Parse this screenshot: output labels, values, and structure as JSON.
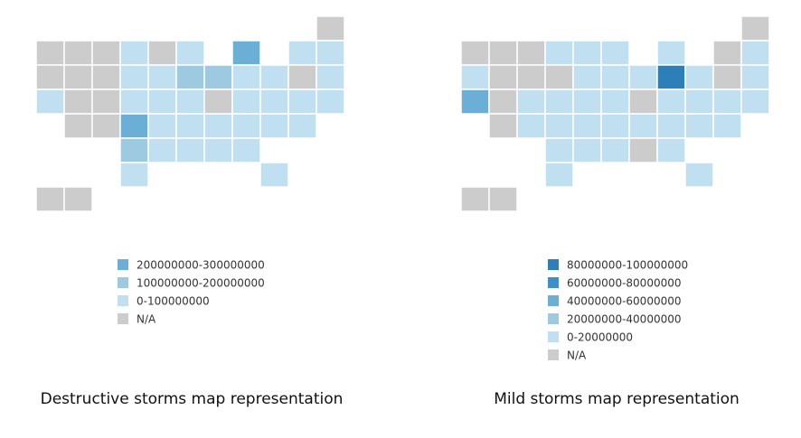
{
  "maps": [
    {
      "caption": "Destructive storms map representation",
      "legend": [
        {
          "label": "200000000-300000000",
          "color": "#6baed6"
        },
        {
          "label": "100000000-200000000",
          "color": "#9ecae1"
        },
        {
          "label": "0-100000000",
          "color": "#c0e0f1"
        },
        {
          "label": "N/A",
          "color": "#cccccc"
        }
      ]
    },
    {
      "caption": "Mild storms map representation",
      "legend": [
        {
          "label": "80000000-100000000",
          "color": "#2c7fb8"
        },
        {
          "label": "60000000-80000000",
          "color": "#3d8fc9"
        },
        {
          "label": "40000000-60000000",
          "color": "#6baed6"
        },
        {
          "label": "20000000-40000000",
          "color": "#9ecae1"
        },
        {
          "label": "0-20000000",
          "color": "#c0e0f1"
        },
        {
          "label": "N/A",
          "color": "#cccccc"
        }
      ]
    }
  ]
}
